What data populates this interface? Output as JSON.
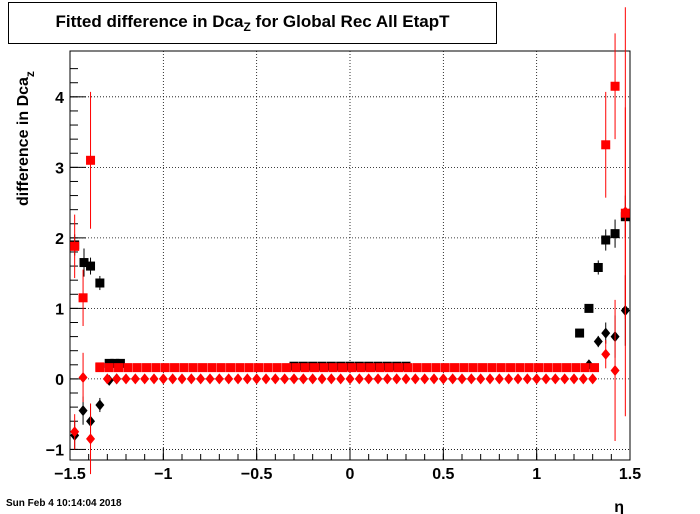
{
  "chart_data": {
    "type": "scatter",
    "title_main": "Fitted difference in Dca",
    "title_sub": "Z",
    "title_rest": " for Global Rec All EtapT",
    "xlabel": "η",
    "ylabel_main": "difference in Dca",
    "ylabel_sub": "z",
    "xlim": [
      -1.5,
      1.5
    ],
    "ylim": [
      -1.15,
      4.65
    ],
    "xticks": [
      -1.5,
      -1,
      -0.5,
      0,
      0.5,
      1,
      1.5
    ],
    "xtick_labels": [
      "−1.5",
      "−1",
      "−0.5",
      "0",
      "0.5",
      "1",
      "1.5"
    ],
    "yticks": [
      -1,
      0,
      1,
      2,
      3,
      4
    ],
    "ytick_labels": [
      "−1",
      "0",
      "1",
      "2",
      "3",
      "4"
    ],
    "grid": true,
    "timestamp": "Sun Feb  4 10:14:04 2018",
    "series": [
      {
        "marker": "square",
        "color": "#000000",
        "points": [
          {
            "x": -1.475,
            "y": 1.9,
            "err": 0.15
          },
          {
            "x": -1.425,
            "y": 1.65,
            "err": 0.2
          },
          {
            "x": -1.39,
            "y": 1.6,
            "err": 0.12
          },
          {
            "x": -1.34,
            "y": 1.36,
            "err": 0.1
          },
          {
            "x": -1.29,
            "y": 0.22,
            "err": 0.02
          },
          {
            "x": -1.26,
            "y": 0.22,
            "err": 0.02
          },
          {
            "x": -1.23,
            "y": 0.22,
            "err": 0.02
          },
          {
            "x": 1.23,
            "y": 0.65,
            "err": 0.04
          },
          {
            "x": 1.28,
            "y": 1.0,
            "err": 0.05
          },
          {
            "x": 1.33,
            "y": 1.58,
            "err": 0.1
          },
          {
            "x": 1.37,
            "y": 1.97,
            "err": 0.15
          },
          {
            "x": 1.42,
            "y": 2.06,
            "err": 0.2
          },
          {
            "x": 1.475,
            "y": 2.3,
            "err": 0.3
          }
        ]
      },
      {
        "marker": "diamond",
        "color": "#000000",
        "points": [
          {
            "x": -1.475,
            "y": -0.8,
            "err": 0.2
          },
          {
            "x": -1.43,
            "y": -0.45,
            "err": 0.2
          },
          {
            "x": -1.39,
            "y": -0.6,
            "err": 0.25
          },
          {
            "x": -1.34,
            "y": -0.37,
            "err": 0.1
          },
          {
            "x": -1.29,
            "y": -0.02,
            "err": 0.02
          },
          {
            "x": -1.25,
            "y": 0.0,
            "err": 0.02
          },
          {
            "x": 1.28,
            "y": 0.2,
            "err": 0.05
          },
          {
            "x": 1.33,
            "y": 0.53,
            "err": 0.08
          },
          {
            "x": 1.37,
            "y": 0.65,
            "err": 0.15
          },
          {
            "x": 1.42,
            "y": 0.6,
            "err": 0.3
          },
          {
            "x": 1.475,
            "y": 0.97,
            "err": 0.5
          }
        ]
      },
      {
        "marker": "square",
        "color": "#ff0000",
        "points": [
          {
            "x": -1.475,
            "y": 1.88,
            "err": 0.45
          },
          {
            "x": -1.43,
            "y": 1.15,
            "err": 0.4
          },
          {
            "x": -1.39,
            "y": 3.1,
            "err": 0.97
          },
          {
            "x": -1.34,
            "y": 0.17,
            "err": 0.02
          },
          {
            "x": 1.37,
            "y": 3.32,
            "err": 0.75
          },
          {
            "x": 1.42,
            "y": 4.15,
            "err": 0.75
          },
          {
            "x": 1.475,
            "y": 2.35,
            "err": 1.5
          }
        ]
      },
      {
        "marker": "diamond",
        "color": "#ff0000",
        "points": [
          {
            "x": -1.475,
            "y": -0.75,
            "err": 0.25
          },
          {
            "x": -1.43,
            "y": 0.02,
            "err": 0.35
          },
          {
            "x": -1.39,
            "y": -0.85,
            "err": 0.5
          },
          {
            "x": 1.37,
            "y": 0.35,
            "err": 0.2
          },
          {
            "x": 1.42,
            "y": 0.12,
            "err": 1.0
          },
          {
            "x": 1.475,
            "y": 2.37,
            "err": 2.9
          }
        ]
      }
    ],
    "red_square_flat": {
      "x_start": -1.34,
      "x_end": 1.34,
      "step": 0.05,
      "y": 0.16,
      "color": "#ff0000"
    },
    "red_diamond_flat": {
      "x_start": -1.3,
      "x_end": 1.34,
      "step": 0.05,
      "y": 0.0,
      "color": "#ff0000"
    },
    "black_square_flat": {
      "x_start": -0.3,
      "x_end": 0.3,
      "step": 0.05,
      "y": 0.18,
      "color": "#000000"
    }
  }
}
